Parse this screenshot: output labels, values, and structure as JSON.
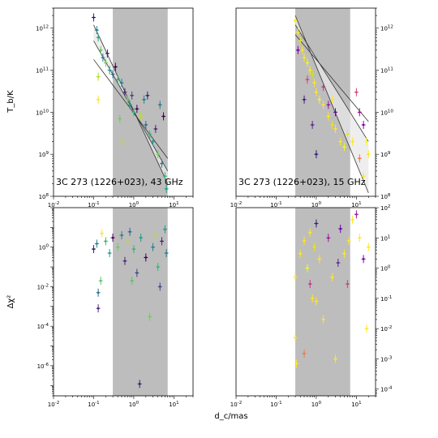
{
  "figure": {
    "x_label": "d_c/mas",
    "tb_label": "T_b/K",
    "chi_label": "Δχ²"
  },
  "chart_data": [
    {
      "type": "scatter",
      "panel": "top-left",
      "annotation": "3C 273 (1226+023), 43 GHz",
      "xlabel": "",
      "ylabel": "T_b/K",
      "xscale": "log",
      "yscale": "log",
      "xlim": [
        0.01,
        30
      ],
      "ylim": [
        100000000.0,
        3000000000000.0
      ],
      "xticks": [
        "10^-2",
        "10^-1",
        "10^0",
        "10^1"
      ],
      "yticks": [
        "10^8",
        "10^9",
        "10^10",
        "10^11",
        "10^12"
      ],
      "shaded_region": [
        0.3,
        7
      ],
      "fit_lines": [
        {
          "x": [
            0.1,
            7
          ],
          "y": [
            500000000000.0,
            400000000.0
          ]
        },
        {
          "x": [
            0.1,
            7
          ],
          "y": [
            1200000000000.0,
            200000000.0
          ]
        },
        {
          "x": [
            0.1,
            7
          ],
          "y": [
            180000000000.0,
            800000000.0
          ]
        }
      ],
      "points": [
        {
          "x": 0.1,
          "y": 1800000000000.0,
          "c": "#3b1f6e"
        },
        {
          "x": 0.12,
          "y": 900000000000.0,
          "c": "#2c7a8c"
        },
        {
          "x": 0.13,
          "y": 600000000000.0,
          "c": "#3ba87a"
        },
        {
          "x": 0.15,
          "y": 300000000000.0,
          "c": "#5ec26a"
        },
        {
          "x": 0.17,
          "y": 200000000000.0,
          "c": "#2c7a8c"
        },
        {
          "x": 0.2,
          "y": 150000000000.0,
          "c": "#6ece58"
        },
        {
          "x": 0.22,
          "y": 250000000000.0,
          "c": "#3b1f6e"
        },
        {
          "x": 0.13,
          "y": 70000000000.0,
          "c": "#b8de29"
        },
        {
          "x": 0.13,
          "y": 20000000000.0,
          "c": "#fde725"
        },
        {
          "x": 0.25,
          "y": 100000000000.0,
          "c": "#1f9e89"
        },
        {
          "x": 0.3,
          "y": 80000000000.0,
          "c": "#31688e"
        },
        {
          "x": 0.35,
          "y": 120000000000.0,
          "c": "#440154"
        },
        {
          "x": 0.4,
          "y": 60000000000.0,
          "c": "#35b779"
        },
        {
          "x": 0.5,
          "y": 50000000000.0,
          "c": "#26828e"
        },
        {
          "x": 0.6,
          "y": 30000000000.0,
          "c": "#482878"
        },
        {
          "x": 0.7,
          "y": 20000000000.0,
          "c": "#6ece58"
        },
        {
          "x": 0.8,
          "y": 15000000000.0,
          "c": "#1f9e89"
        },
        {
          "x": 0.9,
          "y": 25000000000.0,
          "c": "#3e4989"
        },
        {
          "x": 1.0,
          "y": 10000000000.0,
          "c": "#35b779"
        },
        {
          "x": 1.2,
          "y": 12000000000.0,
          "c": "#440154"
        },
        {
          "x": 1.5,
          "y": 8000000000.0,
          "c": "#b8de29"
        },
        {
          "x": 1.8,
          "y": 20000000000.0,
          "c": "#26828e"
        },
        {
          "x": 2.0,
          "y": 5000000000.0,
          "c": "#31688e"
        },
        {
          "x": 2.5,
          "y": 3000000000.0,
          "c": "#35b779"
        },
        {
          "x": 3.0,
          "y": 2000000000.0,
          "c": "#1f9e89"
        },
        {
          "x": 3.5,
          "y": 4000000000.0,
          "c": "#482878"
        },
        {
          "x": 4.0,
          "y": 1000000000.0,
          "c": "#6ece58"
        },
        {
          "x": 5.0,
          "y": 600000000.0,
          "c": "#26828e"
        },
        {
          "x": 6.0,
          "y": 300000000.0,
          "c": "#35b779"
        },
        {
          "x": 6.5,
          "y": 150000000.0,
          "c": "#1f9e89"
        },
        {
          "x": 0.5,
          "y": 2000000000.0,
          "c": "#b8de29"
        },
        {
          "x": 0.45,
          "y": 7000000000.0,
          "c": "#6ece58"
        },
        {
          "x": 2.2,
          "y": 25000000000.0,
          "c": "#3b1f6e"
        },
        {
          "x": 4.5,
          "y": 15000000000.0,
          "c": "#2c7a8c"
        },
        {
          "x": 5.5,
          "y": 8000000000.0,
          "c": "#440154"
        }
      ]
    },
    {
      "type": "scatter",
      "panel": "top-right",
      "annotation": "3C 273 (1226+023), 15 GHz",
      "xlabel": "",
      "ylabel": "",
      "xscale": "log",
      "yscale": "log",
      "xlim": [
        0.01,
        30
      ],
      "ylim": [
        100000000.0,
        3000000000000.0
      ],
      "xticks": [
        "10^-2",
        "10^-1",
        "10^0",
        "10^1"
      ],
      "yticks": [
        "10^8",
        "10^9",
        "10^10",
        "10^11",
        "10^12"
      ],
      "shaded_region": [
        0.3,
        7
      ],
      "fit_lines": [
        {
          "x": [
            0.3,
            20
          ],
          "y": [
            1200000000000.0,
            2000000000.0
          ]
        },
        {
          "x": [
            0.3,
            20
          ],
          "y": [
            2000000000000.0,
            120000000.0
          ]
        },
        {
          "x": [
            0.3,
            20
          ],
          "y": [
            700000000000.0,
            6000000000.0
          ]
        }
      ],
      "points": [
        {
          "x": 0.3,
          "y": 1500000000000.0,
          "c": "#fde725"
        },
        {
          "x": 0.35,
          "y": 800000000000.0,
          "c": "#fde725"
        },
        {
          "x": 0.4,
          "y": 500000000000.0,
          "c": "#e8e419"
        },
        {
          "x": 0.45,
          "y": 300000000000.0,
          "c": "#fde725"
        },
        {
          "x": 0.5,
          "y": 200000000000.0,
          "c": "#fde725"
        },
        {
          "x": 0.6,
          "y": 150000000000.0,
          "c": "#f0f921"
        },
        {
          "x": 0.7,
          "y": 100000000000.0,
          "c": "#fde725"
        },
        {
          "x": 0.8,
          "y": 80000000000.0,
          "c": "#d0e11c"
        },
        {
          "x": 0.9,
          "y": 50000000000.0,
          "c": "#fde725"
        },
        {
          "x": 1.0,
          "y": 30000000000.0,
          "c": "#fde725"
        },
        {
          "x": 1.2,
          "y": 20000000000.0,
          "c": "#f0f921"
        },
        {
          "x": 1.5,
          "y": 15000000000.0,
          "c": "#fde725"
        },
        {
          "x": 2.0,
          "y": 8000000000.0,
          "c": "#fde725"
        },
        {
          "x": 2.5,
          "y": 5000000000.0,
          "c": "#e8e419"
        },
        {
          "x": 3.0,
          "y": 4000000000.0,
          "c": "#fde725"
        },
        {
          "x": 4.0,
          "y": 2000000000.0,
          "c": "#fde725"
        },
        {
          "x": 5.0,
          "y": 1500000000.0,
          "c": "#f0f921"
        },
        {
          "x": 0.5,
          "y": 20000000000.0,
          "c": "#3b1f6e"
        },
        {
          "x": 0.8,
          "y": 5000000000.0,
          "c": "#5c2a8f"
        },
        {
          "x": 1.0,
          "y": 1000000000.0,
          "c": "#2c1d7a"
        },
        {
          "x": 1.5,
          "y": 40000000000.0,
          "c": "#c03a83"
        },
        {
          "x": 2.0,
          "y": 15000000000.0,
          "c": "#9c179e"
        },
        {
          "x": 3.0,
          "y": 10000000000.0,
          "c": "#6a00a8"
        },
        {
          "x": 10,
          "y": 30000000000.0,
          "c": "#cc4778"
        },
        {
          "x": 12,
          "y": 10000000000.0,
          "c": "#9c179e"
        },
        {
          "x": 15,
          "y": 5000000000.0,
          "c": "#7e03a8"
        },
        {
          "x": 18,
          "y": 2000000000.0,
          "c": "#f0f921"
        },
        {
          "x": 20,
          "y": 1000000000.0,
          "c": "#fde725"
        },
        {
          "x": 15,
          "y": 300000000.0,
          "c": "#fde725"
        },
        {
          "x": 12,
          "y": 800000000.0,
          "c": "#ed7953"
        },
        {
          "x": 8,
          "y": 2000000000.0,
          "c": "#fde725"
        },
        {
          "x": 6,
          "y": 3000000000.0,
          "c": "#e8e419"
        },
        {
          "x": 0.35,
          "y": 300000000000.0,
          "c": "#7e03a8"
        },
        {
          "x": 0.6,
          "y": 60000000000.0,
          "c": "#cc4778"
        },
        {
          "x": 2.5,
          "y": 20000000000.0,
          "c": "#fde725"
        }
      ]
    },
    {
      "type": "scatter",
      "panel": "bottom-left",
      "xlabel": "d_c/mas",
      "ylabel": "Δχ²",
      "xscale": "log",
      "yscale": "log",
      "xlim": [
        0.01,
        30
      ],
      "ylim": [
        3e-08,
        100
      ],
      "xticks": [
        "10^-2",
        "10^-1",
        "10^0",
        "10^1"
      ],
      "yticks": [
        "10^-6",
        "10^-4",
        "10^-2",
        "10^0"
      ],
      "shaded_region": [
        0.3,
        7
      ],
      "points": [
        {
          "x": 0.1,
          "y": 0.8,
          "c": "#3b1f6e"
        },
        {
          "x": 0.12,
          "y": 1.5,
          "c": "#2c7a8c"
        },
        {
          "x": 0.13,
          "y": 0.005,
          "c": "#31688e"
        },
        {
          "x": 0.15,
          "y": 0.02,
          "c": "#5ec26a"
        },
        {
          "x": 0.13,
          "y": 0.0008,
          "c": "#482878"
        },
        {
          "x": 0.16,
          "y": 5,
          "c": "#fde725"
        },
        {
          "x": 0.2,
          "y": 2,
          "c": "#35b779"
        },
        {
          "x": 0.25,
          "y": 0.5,
          "c": "#1f9e89"
        },
        {
          "x": 0.3,
          "y": 3,
          "c": "#440154"
        },
        {
          "x": 0.4,
          "y": 1,
          "c": "#6ece58"
        },
        {
          "x": 0.5,
          "y": 4,
          "c": "#26828e"
        },
        {
          "x": 0.6,
          "y": 0.2,
          "c": "#482878"
        },
        {
          "x": 0.7,
          "y": 2,
          "c": "#b8de29"
        },
        {
          "x": 0.8,
          "y": 6,
          "c": "#31688e"
        },
        {
          "x": 1.0,
          "y": 0.8,
          "c": "#35b779"
        },
        {
          "x": 1.2,
          "y": 0.05,
          "c": "#3e4989"
        },
        {
          "x": 1.5,
          "y": 3,
          "c": "#1f9e89"
        },
        {
          "x": 2.0,
          "y": 0.3,
          "c": "#440154"
        },
        {
          "x": 2.5,
          "y": 0.0003,
          "c": "#6ece58"
        },
        {
          "x": 3.0,
          "y": 1,
          "c": "#26828e"
        },
        {
          "x": 3.5,
          "y": 4,
          "c": "#b8de29"
        },
        {
          "x": 4.0,
          "y": 0.1,
          "c": "#35b779"
        },
        {
          "x": 5.0,
          "y": 2,
          "c": "#482878"
        },
        {
          "x": 6.0,
          "y": 8,
          "c": "#1f9e89"
        },
        {
          "x": 6.5,
          "y": 0.5,
          "c": "#2c7a8c"
        },
        {
          "x": 1.4,
          "y": 1.2e-07,
          "c": "#3b1f6e"
        },
        {
          "x": 0.9,
          "y": 0.02,
          "c": "#5ec26a"
        },
        {
          "x": 4.5,
          "y": 0.01,
          "c": "#3e4989"
        }
      ]
    },
    {
      "type": "scatter",
      "panel": "bottom-right",
      "xlabel": "d_c/mas",
      "ylabel": "",
      "xscale": "log",
      "yscale": "log",
      "xlim": [
        0.01,
        30
      ],
      "ylim": [
        6e-05,
        100
      ],
      "xticks": [
        "10^-2",
        "10^-1",
        "10^0",
        "10^1"
      ],
      "yticks": [
        "10^-4",
        "10^-3",
        "10^-2",
        "10^-1",
        "10^0",
        "10^1",
        "10^2"
      ],
      "shaded_region": [
        0.3,
        7
      ],
      "points": [
        {
          "x": 0.3,
          "y": 0.5,
          "c": "#fde725"
        },
        {
          "x": 0.3,
          "y": 0.005,
          "c": "#fde725"
        },
        {
          "x": 0.32,
          "y": 0.0007,
          "c": "#fde725"
        },
        {
          "x": 0.4,
          "y": 3,
          "c": "#fde725"
        },
        {
          "x": 0.5,
          "y": 8,
          "c": "#fde725"
        },
        {
          "x": 0.6,
          "y": 1,
          "c": "#f0f921"
        },
        {
          "x": 0.7,
          "y": 15,
          "c": "#fde725"
        },
        {
          "x": 0.8,
          "y": 0.1,
          "c": "#fde725"
        },
        {
          "x": 0.9,
          "y": 5,
          "c": "#e8e419"
        },
        {
          "x": 1.0,
          "y": 30,
          "c": "#3b1f6e"
        },
        {
          "x": 1.2,
          "y": 2,
          "c": "#fde725"
        },
        {
          "x": 1.5,
          "y": 0.02,
          "c": "#fde725"
        },
        {
          "x": 2.0,
          "y": 10,
          "c": "#9c179e"
        },
        {
          "x": 2.5,
          "y": 0.5,
          "c": "#fde725"
        },
        {
          "x": 3.0,
          "y": 0.001,
          "c": "#fde725"
        },
        {
          "x": 4.0,
          "y": 20,
          "c": "#6a00a8"
        },
        {
          "x": 5.0,
          "y": 3,
          "c": "#fde725"
        },
        {
          "x": 6.0,
          "y": 0.3,
          "c": "#cc4778"
        },
        {
          "x": 8.0,
          "y": 40,
          "c": "#fde725"
        },
        {
          "x": 10,
          "y": 60,
          "c": "#9c179e"
        },
        {
          "x": 12,
          "y": 10,
          "c": "#fde725"
        },
        {
          "x": 15,
          "y": 2,
          "c": "#7e03a8"
        },
        {
          "x": 18,
          "y": 0.01,
          "c": "#fde725"
        },
        {
          "x": 20,
          "y": 5,
          "c": "#fde725"
        },
        {
          "x": 0.5,
          "y": 0.0015,
          "c": "#ed7953"
        },
        {
          "x": 1.0,
          "y": 0.08,
          "c": "#fde725"
        },
        {
          "x": 3.5,
          "y": 1.5,
          "c": "#5c2a8f"
        },
        {
          "x": 0.7,
          "y": 0.3,
          "c": "#c03a83"
        },
        {
          "x": 6.5,
          "y": 8,
          "c": "#fde725"
        }
      ]
    }
  ]
}
